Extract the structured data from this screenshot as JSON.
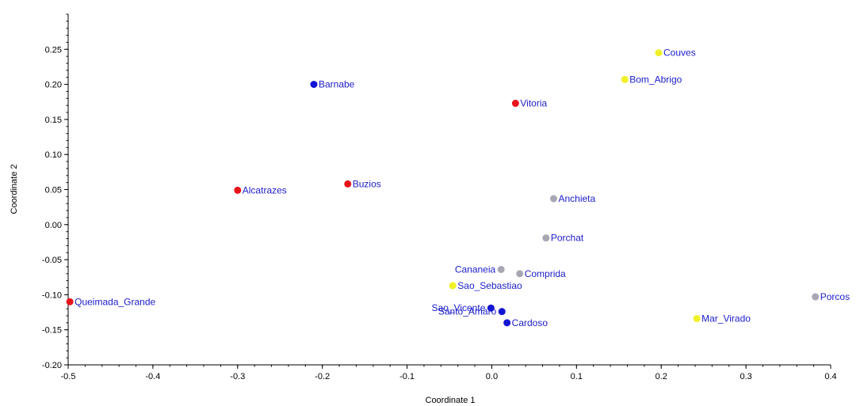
{
  "chart_data": {
    "type": "scatter",
    "title": "",
    "xlabel": "Coordinate 1",
    "ylabel": "Coordinate 2",
    "xlim": [
      -0.5,
      0.4
    ],
    "ylim": [
      -0.2,
      0.3
    ],
    "x_ticks": [
      "-0.5",
      "-0.4",
      "-0.3",
      "-0.2",
      "-0.1",
      "0.0",
      "0.1",
      "0.2",
      "0.3",
      "0.4"
    ],
    "y_ticks": [
      "-0.20",
      "-0.15",
      "-0.10",
      "-0.05",
      "0.00",
      "0.05",
      "0.10",
      "0.15",
      "0.20",
      "0.25"
    ],
    "grid": false,
    "colors": {
      "red": "#e8141c",
      "blue": "#1414d4",
      "yellow": "#f0f028",
      "gray": "#a8a8b4",
      "label": "#1c1ccc"
    },
    "points": [
      {
        "label": "Couves",
        "x": 0.197,
        "y": 0.245,
        "color": "yellow"
      },
      {
        "label": "Bom_Abrigo",
        "x": 0.157,
        "y": 0.207,
        "color": "yellow"
      },
      {
        "label": "Barnabe",
        "x": -0.21,
        "y": 0.2,
        "color": "blue"
      },
      {
        "label": "Vitoria",
        "x": 0.028,
        "y": 0.173,
        "color": "red"
      },
      {
        "label": "Buzios",
        "x": -0.17,
        "y": 0.058,
        "color": "red"
      },
      {
        "label": "Alcatrazes",
        "x": -0.3,
        "y": 0.049,
        "color": "red"
      },
      {
        "label": "Anchieta",
        "x": 0.073,
        "y": 0.037,
        "color": "gray"
      },
      {
        "label": "Porchat",
        "x": 0.064,
        "y": -0.019,
        "color": "gray"
      },
      {
        "label": "Cananeia",
        "x": 0.011,
        "y": -0.064,
        "color": "gray",
        "side": "left"
      },
      {
        "label": "Comprida",
        "x": 0.033,
        "y": -0.07,
        "color": "gray"
      },
      {
        "label": "Sao_Sebastiao",
        "x": -0.046,
        "y": -0.087,
        "color": "yellow"
      },
      {
        "label": "Queimada_Grande",
        "x": -0.498,
        "y": -0.11,
        "color": "red"
      },
      {
        "label": "Porcos",
        "x": 0.382,
        "y": -0.103,
        "color": "gray"
      },
      {
        "label": "Sao_Vicente",
        "x": -0.001,
        "y": -0.119,
        "color": "blue",
        "side": "left"
      },
      {
        "label": "Santo_Amaro",
        "x": 0.012,
        "y": -0.124,
        "color": "blue",
        "side": "left"
      },
      {
        "label": "Cardoso",
        "x": 0.018,
        "y": -0.14,
        "color": "blue"
      },
      {
        "label": "Mar_Virado",
        "x": 0.242,
        "y": -0.134,
        "color": "yellow"
      }
    ]
  }
}
